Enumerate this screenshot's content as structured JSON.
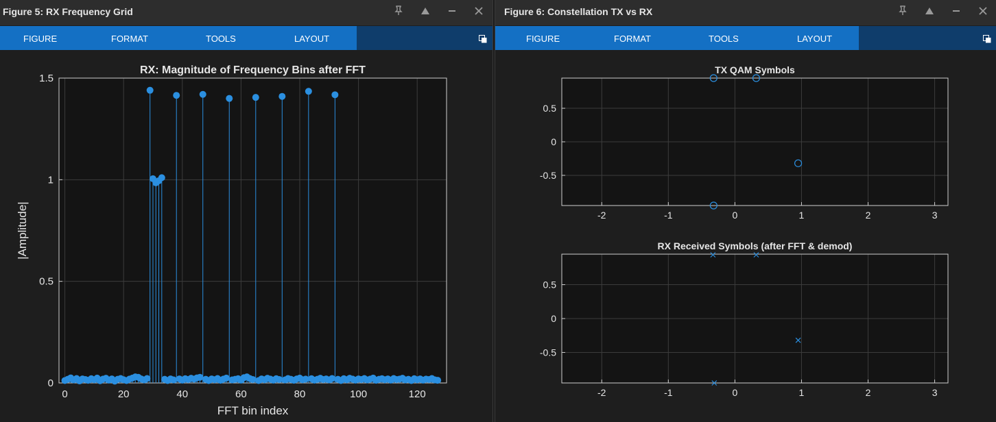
{
  "figure5": {
    "window_title": "Figure 5: RX Frequency Grid",
    "tabs": [
      "FIGURE",
      "FORMAT",
      "TOOLS",
      "LAYOUT"
    ],
    "controls": {
      "pin": "pin-icon",
      "maximize": "triangle-up-icon",
      "minimize": "minus-icon",
      "close": "close-icon"
    }
  },
  "figure6": {
    "window_title": "Figure 6: Constellation TX vs RX",
    "tabs": [
      "FIGURE",
      "FORMAT",
      "TOOLS",
      "LAYOUT"
    ],
    "controls": {
      "pin": "pin-icon",
      "maximize": "triangle-up-icon",
      "minimize": "minus-icon",
      "close": "close-icon"
    }
  },
  "colors": {
    "accent": "#1470c4",
    "series": "#2b8fe0",
    "axes_bg": "#141414",
    "grid": "#3c3c3c",
    "text": "#e6e6e6"
  },
  "chart_data": [
    {
      "type": "stem",
      "title": "RX: Magnitude of Frequency Bins after FFT",
      "xlabel": "FFT bin index",
      "ylabel": "|Amplitude|",
      "xlim": [
        -2,
        130
      ],
      "ylim": [
        0,
        1.5
      ],
      "xticks": [
        0,
        20,
        40,
        60,
        80,
        100,
        120
      ],
      "yticks": [
        0,
        0.5,
        1,
        1.5
      ],
      "grid": true,
      "series": [
        {
          "x": [
            0,
            1,
            2,
            3,
            4,
            5,
            6,
            7,
            8,
            9,
            10,
            11,
            12,
            13,
            14,
            15,
            16,
            17,
            18,
            19,
            20,
            21,
            22,
            23,
            24,
            25,
            26,
            27,
            28,
            29,
            30,
            31,
            32,
            33,
            34,
            35,
            36,
            37,
            38,
            39,
            40,
            41,
            42,
            43,
            44,
            45,
            46,
            47,
            48,
            49,
            50,
            51,
            52,
            53,
            54,
            55,
            56,
            57,
            58,
            59,
            60,
            61,
            62,
            63,
            64,
            65,
            66,
            67,
            68,
            69,
            70,
            71,
            72,
            73,
            74,
            75,
            76,
            77,
            78,
            79,
            80,
            81,
            82,
            83,
            84,
            85,
            86,
            87,
            88,
            89,
            90,
            91,
            92,
            93,
            94,
            95,
            96,
            97,
            98,
            99,
            100,
            101,
            102,
            103,
            104,
            105,
            106,
            107,
            108,
            109,
            110,
            111,
            112,
            113,
            114,
            115,
            116,
            117,
            118,
            119,
            120,
            121,
            122,
            123,
            124,
            125,
            126,
            127
          ],
          "y": [
            0.012,
            0.018,
            0.025,
            0.015,
            0.022,
            0.01,
            0.02,
            0.017,
            0.013,
            0.021,
            0.016,
            0.024,
            0.011,
            0.019,
            0.023,
            0.014,
            0.02,
            0.009,
            0.018,
            0.022,
            0.016,
            0.012,
            0.019,
            0.024,
            0.03,
            0.028,
            0.02,
            0.015,
            0.022,
            1.44,
            1.005,
            0.985,
            0.995,
            1.01,
            0.018,
            0.012,
            0.02,
            0.015,
            1.415,
            0.02,
            0.014,
            0.021,
            0.017,
            0.023,
            0.019,
            0.025,
            0.028,
            1.42,
            0.018,
            0.012,
            0.02,
            0.016,
            0.022,
            0.013,
            0.019,
            0.024,
            1.4,
            0.015,
            0.018,
            0.021,
            0.014,
            0.026,
            0.03,
            0.022,
            0.017,
            1.405,
            0.012,
            0.02,
            0.016,
            0.023,
            0.019,
            0.014,
            0.021,
            0.017,
            1.41,
            0.015,
            0.022,
            0.018,
            0.013,
            0.02,
            0.024,
            0.016,
            0.019,
            1.435,
            0.021,
            0.014,
            0.018,
            0.023,
            0.017,
            0.02,
            0.015,
            0.022,
            1.418,
            0.018,
            0.012,
            0.021,
            0.016,
            0.023,
            0.019,
            0.014,
            0.02,
            0.017,
            0.022,
            0.015,
            0.019,
            0.024,
            0.013,
            0.018,
            0.021,
            0.016,
            0.02,
            0.014,
            0.022,
            0.017,
            0.019,
            0.023,
            0.015,
            0.018,
            0.012,
            0.021,
            0.016,
            0.02,
            0.014,
            0.019,
            0.017,
            0.022,
            0.015,
            0.013
          ]
        }
      ]
    },
    {
      "type": "scatter",
      "marker": "circle",
      "title": "TX QAM Symbols",
      "xlim": [
        -2.6,
        3.2
      ],
      "ylim": [
        -0.95,
        0.95
      ],
      "xticks": [
        -2,
        -1,
        0,
        1,
        2,
        3
      ],
      "yticks": [
        -0.5,
        0,
        0.5
      ],
      "grid": true,
      "series": [
        {
          "x": [
            -0.32,
            0.32,
            0.95,
            -0.32
          ],
          "y": [
            0.95,
            0.95,
            -0.32,
            -0.95
          ]
        }
      ]
    },
    {
      "type": "scatter",
      "marker": "x",
      "title": "RX Received Symbols (after FFT & demod)",
      "xlim": [
        -2.6,
        3.2
      ],
      "ylim": [
        -0.95,
        0.95
      ],
      "xticks": [
        -2,
        -1,
        0,
        1,
        2,
        3
      ],
      "yticks": [
        -0.5,
        0,
        0.5
      ],
      "grid": true,
      "series": [
        {
          "x": [
            -0.33,
            0.32,
            0.95,
            -0.31
          ],
          "y": [
            0.94,
            0.94,
            -0.32,
            -0.95
          ]
        }
      ]
    }
  ]
}
